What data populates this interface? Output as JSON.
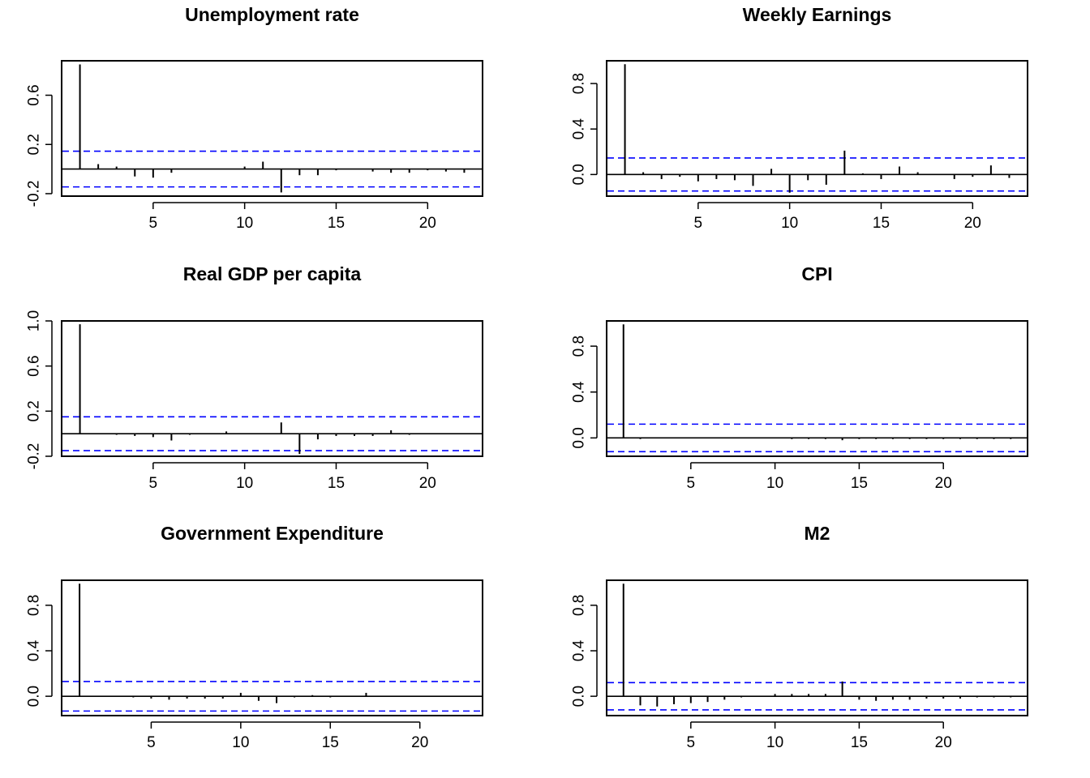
{
  "chart_data": [
    {
      "type": "bar",
      "title": "Unemployment rate",
      "x": [
        1,
        2,
        3,
        4,
        5,
        6,
        7,
        8,
        9,
        10,
        11,
        12,
        13,
        14,
        15,
        16,
        17,
        18,
        19,
        20,
        21,
        22
      ],
      "values": [
        0.85,
        0.04,
        0.02,
        -0.06,
        -0.07,
        -0.03,
        0,
        0,
        0,
        0.02,
        0.06,
        -0.19,
        -0.05,
        -0.05,
        -0.01,
        0,
        -0.02,
        -0.03,
        -0.03,
        -0.01,
        -0.02,
        -0.03
      ],
      "ci": 0.145,
      "xlim": [
        0,
        23
      ],
      "ylim": [
        -0.22,
        0.88
      ],
      "xticks": [
        5,
        10,
        15,
        20
      ],
      "yticks": [
        -0.2,
        0.2,
        0.6
      ],
      "xtick_labels": [
        "5",
        "10",
        "15",
        "20"
      ],
      "ytick_labels": [
        "-0.2",
        "0.2",
        "0.6"
      ]
    },
    {
      "type": "bar",
      "title": "Weekly Earnings",
      "x": [
        1,
        2,
        3,
        4,
        5,
        6,
        7,
        8,
        9,
        10,
        11,
        12,
        13,
        14,
        15,
        16,
        17,
        18,
        19,
        20,
        21,
        22
      ],
      "values": [
        0.97,
        0.02,
        -0.04,
        -0.02,
        -0.06,
        -0.04,
        -0.05,
        -0.1,
        0.05,
        -0.16,
        -0.05,
        -0.09,
        0.21,
        0.01,
        -0.04,
        0.07,
        0.02,
        0,
        -0.04,
        -0.02,
        0.08,
        -0.03
      ],
      "ci": 0.145,
      "xlim": [
        0,
        23
      ],
      "ylim": [
        -0.19,
        1.0
      ],
      "xticks": [
        5,
        10,
        15,
        20
      ],
      "yticks": [
        0.0,
        0.4,
        0.8
      ],
      "xtick_labels": [
        "5",
        "10",
        "15",
        "20"
      ],
      "ytick_labels": [
        "0.0",
        "0.4",
        "0.8"
      ]
    },
    {
      "type": "bar",
      "title": "Real GDP per capita",
      "x": [
        1,
        2,
        3,
        4,
        5,
        6,
        7,
        8,
        9,
        10,
        11,
        12,
        13,
        14,
        15,
        16,
        17,
        18,
        19
      ],
      "values": [
        0.97,
        0,
        -0.01,
        -0.02,
        -0.03,
        -0.06,
        -0.01,
        0,
        0.02,
        0,
        0,
        0.1,
        -0.18,
        -0.05,
        -0.02,
        -0.02,
        -0.02,
        0.03,
        -0.01
      ],
      "ci": 0.15,
      "xlim": [
        0,
        23
      ],
      "ylim": [
        -0.2,
        1.0
      ],
      "xticks": [
        5,
        10,
        15,
        20
      ],
      "yticks": [
        -0.2,
        0.2,
        0.6,
        1.0
      ],
      "xtick_labels": [
        "5",
        "10",
        "15",
        "20"
      ],
      "ytick_labels": [
        "-0.2",
        "0.2",
        "0.6",
        "1.0"
      ]
    },
    {
      "type": "bar",
      "title": "CPI",
      "x": [
        1,
        2,
        3,
        4,
        5,
        6,
        7,
        8,
        9,
        10,
        11,
        12,
        13,
        14,
        15,
        16,
        17,
        18,
        19,
        20,
        21,
        22,
        23,
        24
      ],
      "values": [
        0.99,
        -0.01,
        0,
        0,
        0,
        0,
        0,
        0,
        0,
        0,
        -0.01,
        -0.01,
        -0.01,
        -0.02,
        -0.01,
        -0.01,
        -0.01,
        -0.01,
        -0.01,
        -0.01,
        -0.01,
        -0.01,
        -0.01,
        -0.01
      ],
      "ci": 0.12,
      "xlim": [
        0,
        25
      ],
      "ylim": [
        -0.16,
        1.02
      ],
      "xticks": [
        5,
        10,
        15,
        20
      ],
      "yticks": [
        0.0,
        0.4,
        0.8
      ],
      "xtick_labels": [
        "5",
        "10",
        "15",
        "20"
      ],
      "ytick_labels": [
        "0.0",
        "0.4",
        "0.8"
      ]
    },
    {
      "type": "bar",
      "title": "Government Expenditure",
      "x": [
        1,
        2,
        3,
        4,
        5,
        6,
        7,
        8,
        9,
        10,
        11,
        12,
        13,
        14,
        15,
        16,
        17
      ],
      "values": [
        0.99,
        0,
        0,
        -0.01,
        -0.02,
        -0.03,
        -0.02,
        -0.02,
        -0.02,
        0.03,
        -0.04,
        -0.06,
        -0.01,
        0.01,
        -0.01,
        0,
        0.03
      ],
      "ci": 0.13,
      "xlim": [
        0,
        23.5
      ],
      "ylim": [
        -0.17,
        1.02
      ],
      "xticks": [
        5,
        10,
        15,
        20
      ],
      "yticks": [
        0.0,
        0.4,
        0.8
      ],
      "xtick_labels": [
        "5",
        "10",
        "15",
        "20"
      ],
      "ytick_labels": [
        "0.0",
        "0.4",
        "0.8"
      ]
    },
    {
      "type": "bar",
      "title": "M2",
      "x": [
        1,
        2,
        3,
        4,
        5,
        6,
        7,
        8,
        9,
        10,
        11,
        12,
        13,
        14,
        15,
        16,
        17,
        18,
        19,
        20,
        21,
        22,
        23,
        24
      ],
      "values": [
        0.99,
        -0.08,
        -0.09,
        -0.07,
        -0.06,
        -0.05,
        -0.03,
        -0.01,
        0,
        0.02,
        0.02,
        0.02,
        0.02,
        0.13,
        -0.03,
        -0.04,
        -0.03,
        -0.03,
        -0.02,
        -0.02,
        -0.02,
        -0.01,
        -0.01,
        -0.01
      ],
      "ci": 0.12,
      "xlim": [
        0,
        25
      ],
      "ylim": [
        -0.17,
        1.02
      ],
      "xticks": [
        5,
        10,
        15,
        20
      ],
      "yticks": [
        0.0,
        0.4,
        0.8
      ],
      "xtick_labels": [
        "5",
        "10",
        "15",
        "20"
      ],
      "ytick_labels": [
        "0.0",
        "0.4",
        "0.8"
      ]
    }
  ],
  "colors": {
    "ci_line": "#0000ff",
    "spike": "#000000",
    "frame": "#000000"
  }
}
